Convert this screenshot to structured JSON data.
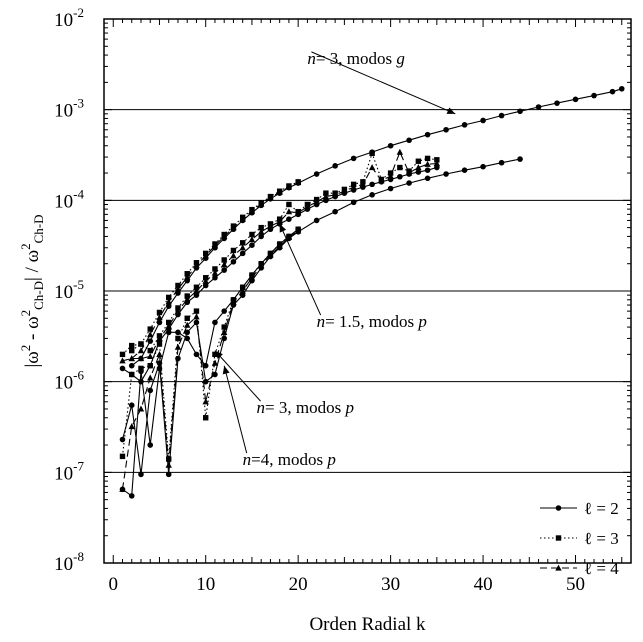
{
  "chart_data": {
    "type": "line",
    "xlabel": "Orden Radial  k",
    "ylabel_parts": [
      "|ω",
      "2",
      " - ω",
      "2",
      "Ch-D",
      "| / ω",
      "2",
      "Ch-D"
    ],
    "xlim": [
      -1,
      56
    ],
    "ylim": [
      1e-08,
      0.01
    ],
    "yscale": "log",
    "grid": "horizontal-major",
    "x_ticks": [
      0,
      10,
      20,
      30,
      40,
      50
    ],
    "y_ticks": [
      {
        "base": "10",
        "exp": "-8",
        "value": 1e-08
      },
      {
        "base": "10",
        "exp": "-7",
        "value": 1e-07
      },
      {
        "base": "10",
        "exp": "-6",
        "value": 1e-06
      },
      {
        "base": "10",
        "exp": "-5",
        "value": 1e-05
      },
      {
        "base": "10",
        "exp": "-4",
        "value": 0.0001
      },
      {
        "base": "10",
        "exp": "-3",
        "value": 0.001
      },
      {
        "base": "10",
        "exp": "-2",
        "value": 0.01
      }
    ],
    "legend_position": "bottom-right",
    "legend": [
      {
        "label": "ℓ = 2",
        "style": "solid",
        "marker": "circle"
      },
      {
        "label": "ℓ = 3",
        "style": "dotted",
        "marker": "square"
      },
      {
        "label": "ℓ = 4",
        "style": "dashed",
        "marker": "triangle"
      }
    ],
    "annotations": [
      {
        "pre": "n",
        "mid": "= 3, modos ",
        "post": "g",
        "x": 21,
        "y": 0.0032,
        "tx": 37,
        "ty": 0.0009
      },
      {
        "pre": "n",
        "mid": "= 1.5, modos ",
        "post": "p",
        "x": 22,
        "y": 4e-06,
        "tx": 18,
        "ty": 5.5e-05
      },
      {
        "pre": "n",
        "mid": "= 3, modos ",
        "post": "p",
        "x": 15.5,
        "y": 4.5e-07,
        "tx": 11,
        "ty": 2.2e-06
      },
      {
        "pre": "n",
        "mid": "=4, modos ",
        "post": "p",
        "x": 14,
        "y": 1.2e-07,
        "tx": 12,
        "ty": 1.5e-06
      }
    ],
    "series": [
      {
        "group": "n=3 g",
        "style": "solid",
        "marker": "circle",
        "x": [
          2,
          3,
          4,
          5,
          6,
          7,
          8,
          9,
          10,
          11,
          12,
          13,
          14,
          15,
          16,
          17,
          18,
          19,
          20,
          22,
          24,
          26,
          28,
          30,
          32,
          34,
          36,
          38,
          40,
          42,
          44,
          46,
          48,
          50,
          52,
          54,
          55
        ],
        "y": [
          1.5e-06,
          1.8e-06,
          2.8e-06,
          4.5e-06,
          6.8e-06,
          9.5e-06,
          1.3e-05,
          1.8e-05,
          2.3e-05,
          3e-05,
          3.8e-05,
          4.8e-05,
          6e-05,
          7.3e-05,
          8.8e-05,
          0.000104,
          0.00012,
          0.000138,
          0.000155,
          0.000195,
          0.00024,
          0.00029,
          0.00034,
          0.0004,
          0.00046,
          0.00053,
          0.0006,
          0.00068,
          0.00076,
          0.00086,
          0.00096,
          0.00107,
          0.00118,
          0.0013,
          0.00143,
          0.00158,
          0.0017
        ]
      },
      {
        "group": "n=3 g",
        "style": "dotted",
        "marker": "square",
        "x": [
          2,
          3,
          4,
          5,
          6,
          7,
          8,
          9,
          10,
          11,
          12,
          13,
          14,
          15,
          16,
          17,
          18,
          19,
          20
        ],
        "y": [
          2.2e-06,
          2.6e-06,
          3.8e-06,
          5.8e-06,
          8.5e-06,
          1.15e-05,
          1.55e-05,
          2.05e-05,
          2.6e-05,
          3.3e-05,
          4.2e-05,
          5.2e-05,
          6.5e-05,
          7.9e-05,
          9.4e-05,
          0.00011,
          0.000126,
          0.000144,
          0.00016
        ]
      },
      {
        "group": "n=3 g",
        "style": "dashed",
        "marker": "triangle",
        "x": [
          2,
          3,
          4,
          5,
          6,
          7,
          8,
          9,
          10,
          11,
          12,
          13,
          14,
          15,
          16,
          17,
          18,
          19,
          20
        ],
        "y": [
          1.8e-06,
          2.2e-06,
          3.3e-06,
          5.1e-06,
          7.6e-06,
          1.05e-05,
          1.42e-05,
          1.92e-05,
          2.45e-05,
          3.15e-05,
          4e-05,
          5e-05,
          6.2e-05,
          7.6e-05,
          9.1e-05,
          0.000107,
          0.000123,
          0.00014,
          0.000157
        ]
      },
      {
        "group": "n=1.5 p",
        "style": "solid",
        "marker": "circle",
        "x": [
          1,
          2,
          3,
          4,
          5,
          6,
          7,
          8,
          9,
          10,
          11,
          12,
          13,
          14,
          15,
          16,
          17,
          18,
          19,
          20,
          21,
          22,
          23,
          24,
          25,
          26,
          27,
          28,
          29,
          30,
          31,
          32,
          33,
          34,
          35
        ],
        "y": [
          1.4e-06,
          1.2e-06,
          1e-06,
          1.5e-06,
          2.8e-06,
          3.8e-06,
          5.5e-06,
          7.5e-06,
          9e-06,
          1.15e-05,
          1.4e-05,
          1.7e-05,
          2.1e-05,
          2.6e-05,
          3.2e-05,
          4e-05,
          4.8e-05,
          5.5e-05,
          6.2e-05,
          7e-05,
          8e-05,
          9e-05,
          0.0001,
          0.00011,
          0.00012,
          0.00013,
          0.00014,
          0.00015,
          0.00016,
          0.00017,
          0.000182,
          0.000195,
          0.000205,
          0.000215,
          0.00023
        ]
      },
      {
        "group": "n=1.5 p",
        "style": "dotted",
        "marker": "square",
        "x": [
          1,
          2,
          3,
          4,
          5,
          6,
          7,
          8,
          9,
          10,
          11,
          12,
          13,
          14,
          15,
          16,
          17,
          18,
          19,
          20,
          21,
          22,
          23,
          24,
          25,
          26,
          27,
          28,
          29,
          30,
          31,
          32,
          33,
          34,
          35
        ],
        "y": [
          2e-06,
          2.5e-06,
          2.6e-06,
          2.2e-06,
          3.2e-06,
          4.5e-06,
          6.5e-06,
          8.8e-06,
          1.1e-05,
          1.4e-05,
          1.75e-05,
          2.2e-05,
          2.8e-05,
          3.4e-05,
          4.2e-05,
          5e-05,
          5.5e-05,
          6.2e-05,
          9e-05,
          7.5e-05,
          9e-05,
          0.000102,
          0.00012,
          0.00012,
          0.000132,
          0.00015,
          0.00016,
          0.00033,
          0.00017,
          0.0002,
          0.00023,
          0.00021,
          0.00027,
          0.00029,
          0.00028
        ]
      },
      {
        "group": "n=1.5 p",
        "style": "dashed",
        "marker": "triangle",
        "x": [
          1,
          2,
          3,
          4,
          5,
          6,
          7,
          8,
          9,
          10,
          11,
          12,
          13,
          14,
          15,
          16,
          17,
          18,
          19,
          20,
          21,
          22,
          23,
          24,
          25,
          26,
          27,
          28,
          29,
          30,
          31,
          32,
          33,
          34,
          35
        ],
        "y": [
          1.7e-06,
          1.8e-06,
          1.8e-06,
          1.9e-06,
          3e-06,
          4.1e-06,
          6e-06,
          8.1e-06,
          1e-05,
          1.28e-05,
          1.58e-05,
          1.95e-05,
          2.45e-05,
          3e-05,
          3.7e-05,
          4.5e-05,
          5.2e-05,
          5.8e-05,
          7.5e-05,
          7.3e-05,
          8.5e-05,
          9.6e-05,
          0.00011,
          0.000115,
          0.000126,
          0.00014,
          0.00015,
          0.00023,
          0.000165,
          0.000185,
          0.00034,
          0.0002,
          0.00023,
          0.00025,
          0.000255
        ]
      },
      {
        "group": "n=3 p",
        "style": "solid",
        "marker": "circle",
        "x": [
          1,
          2,
          3,
          4,
          5,
          6,
          7,
          8,
          9,
          10,
          11,
          12,
          13,
          14,
          15,
          16,
          17,
          18,
          19,
          20,
          22,
          24,
          26,
          28,
          30,
          32,
          34,
          36,
          38,
          40,
          42,
          44
        ],
        "y": [
          2.3e-07,
          5.5e-07,
          9.5e-08,
          8e-07,
          1.6e-06,
          9.5e-08,
          1.8e-06,
          3.5e-06,
          4.5e-06,
          1e-06,
          1.2e-06,
          3e-06,
          7e-06,
          9e-06,
          1.3e-05,
          1.8e-05,
          2.4e-05,
          3e-05,
          3.8e-05,
          4.5e-05,
          6e-05,
          7.5e-05,
          9.5e-05,
          0.000115,
          0.000135,
          0.000155,
          0.000175,
          0.000195,
          0.000215,
          0.000235,
          0.00026,
          0.000285
        ]
      },
      {
        "group": "n=3 p",
        "style": "dotted",
        "marker": "square",
        "x": [
          1,
          2,
          3,
          4,
          5,
          6,
          7,
          8,
          9,
          10,
          11,
          12,
          13,
          14,
          15,
          16,
          17,
          18,
          19,
          20
        ],
        "y": [
          1.5e-07,
          1.2e-06,
          1.4e-06,
          1.5e-06,
          2.6e-06,
          1.4e-07,
          3e-06,
          5e-06,
          6e-06,
          4e-07,
          2e-06,
          4e-06,
          8e-06,
          1.1e-05,
          1.5e-05,
          2e-05,
          2.6e-05,
          3.3e-05,
          4e-05,
          4.8e-05
        ]
      },
      {
        "group": "n=3 p",
        "style": "dashed",
        "marker": "triangle",
        "x": [
          1,
          2,
          3,
          4,
          5,
          6,
          7,
          8,
          9,
          10,
          11,
          12,
          13,
          14,
          15,
          16,
          17,
          18,
          19,
          20
        ],
        "y": [
          6.5e-08,
          3.2e-07,
          5e-07,
          1.1e-06,
          2e-06,
          1.2e-07,
          2.4e-06,
          4.2e-06,
          5.2e-06,
          6e-07,
          1.6e-06,
          3.5e-06,
          7.5e-06,
          1e-05,
          1.4e-05,
          1.9e-05,
          2.5e-05,
          3.1e-05,
          3.9e-05,
          4.6e-05
        ]
      },
      {
        "group": "n=4 p",
        "style": "solid",
        "marker": "circle",
        "x": [
          1,
          2,
          3,
          4,
          5,
          6,
          7,
          8,
          9,
          10,
          11,
          12,
          13,
          14,
          15,
          16,
          17,
          18,
          19,
          20
        ],
        "y": [
          6.5e-08,
          5.5e-08,
          1.3e-06,
          2e-07,
          1.4e-06,
          3.5e-06,
          3.5e-06,
          3e-06,
          2e-06,
          1.5e-06,
          4.5e-06,
          6e-06,
          8e-06,
          1.1e-05,
          1.5e-05,
          2e-05,
          2.6e-05,
          3.3e-05,
          4e-05,
          4.8e-05
        ]
      }
    ]
  }
}
